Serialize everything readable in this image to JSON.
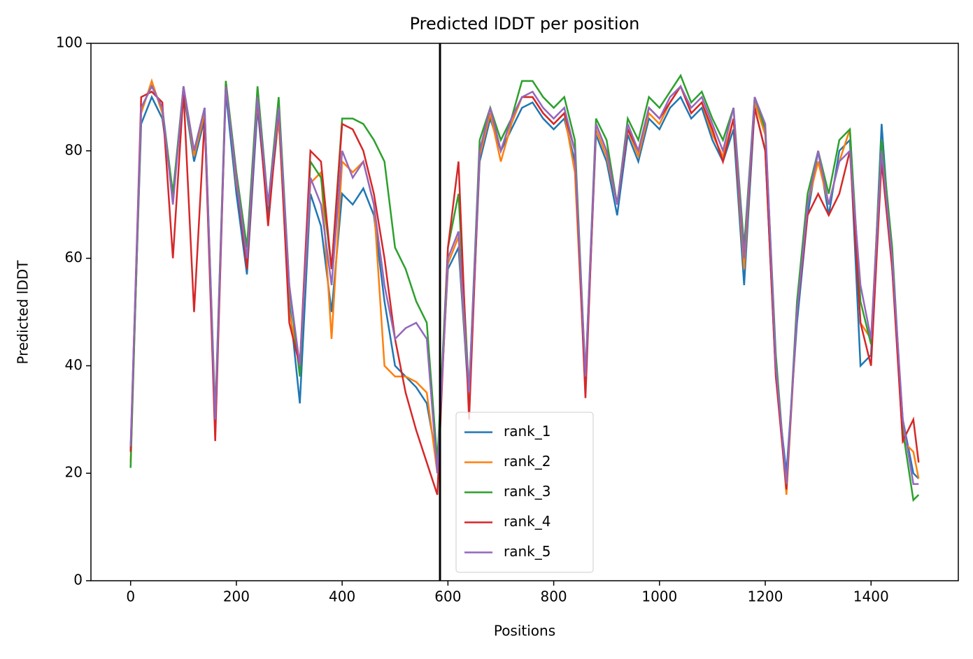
{
  "chart_data": {
    "type": "line",
    "title": "Predicted lDDT per position",
    "xlabel": "Positions",
    "ylabel": "Predicted lDDT",
    "x": [
      0,
      20,
      40,
      60,
      80,
      100,
      120,
      140,
      160,
      180,
      200,
      220,
      240,
      260,
      280,
      300,
      320,
      340,
      360,
      380,
      400,
      420,
      440,
      460,
      480,
      500,
      520,
      540,
      560,
      580,
      600,
      620,
      640,
      660,
      680,
      700,
      720,
      740,
      760,
      780,
      800,
      820,
      840,
      860,
      880,
      900,
      920,
      940,
      960,
      980,
      1000,
      1020,
      1040,
      1060,
      1080,
      1100,
      1120,
      1140,
      1160,
      1180,
      1200,
      1220,
      1240,
      1260,
      1280,
      1300,
      1320,
      1340,
      1360,
      1380,
      1400,
      1420,
      1440,
      1460,
      1480,
      1490
    ],
    "series": [
      {
        "name": "rank_1",
        "color": "#1f77b4",
        "values": [
          24,
          85,
          90,
          86,
          72,
          91,
          78,
          86,
          29,
          91,
          72,
          57,
          88,
          68,
          86,
          52,
          33,
          72,
          66,
          50,
          72,
          70,
          73,
          68,
          52,
          40,
          38,
          36,
          33,
          22,
          58,
          62,
          33,
          78,
          86,
          80,
          84,
          88,
          89,
          86,
          84,
          86,
          78,
          37,
          83,
          78,
          68,
          83,
          78,
          86,
          84,
          88,
          90,
          86,
          88,
          82,
          78,
          84,
          55,
          88,
          80,
          38,
          20,
          48,
          68,
          80,
          68,
          80,
          82,
          40,
          42,
          85,
          58,
          30,
          20,
          19
        ]
      },
      {
        "name": "rank_2",
        "color": "#ff7f0e",
        "values": [
          22,
          87,
          93,
          87,
          71,
          92,
          79,
          87,
          30,
          93,
          74,
          62,
          89,
          70,
          86,
          50,
          40,
          74,
          76,
          45,
          78,
          76,
          78,
          70,
          40,
          38,
          38,
          37,
          35,
          20,
          59,
          64,
          34,
          79,
          87,
          78,
          85,
          90,
          90,
          87,
          85,
          87,
          76,
          36,
          84,
          79,
          70,
          84,
          79,
          87,
          85,
          89,
          92,
          87,
          89,
          83,
          79,
          86,
          58,
          89,
          83,
          40,
          16,
          50,
          70,
          78,
          70,
          78,
          84,
          48,
          45,
          82,
          60,
          26,
          24,
          19
        ]
      },
      {
        "name": "rank_3",
        "color": "#2ca02c",
        "values": [
          21,
          88,
          92,
          88,
          72,
          92,
          80,
          88,
          31,
          93,
          76,
          62,
          92,
          70,
          90,
          55,
          38,
          78,
          75,
          58,
          86,
          86,
          85,
          82,
          78,
          62,
          58,
          52,
          48,
          22,
          62,
          72,
          35,
          82,
          88,
          82,
          86,
          93,
          93,
          90,
          88,
          90,
          82,
          38,
          86,
          82,
          70,
          86,
          82,
          90,
          88,
          91,
          94,
          89,
          91,
          86,
          82,
          88,
          62,
          90,
          84,
          42,
          17,
          52,
          72,
          80,
          72,
          82,
          84,
          52,
          44,
          82,
          62,
          28,
          15,
          16
        ]
      },
      {
        "name": "rank_4",
        "color": "#d62728",
        "values": [
          24,
          90,
          91,
          89,
          60,
          91,
          50,
          86,
          26,
          92,
          75,
          58,
          90,
          66,
          88,
          48,
          40,
          80,
          78,
          58,
          85,
          84,
          80,
          72,
          60,
          45,
          35,
          28,
          22,
          16,
          62,
          78,
          30,
          80,
          88,
          80,
          86,
          90,
          90,
          87,
          85,
          87,
          80,
          34,
          85,
          80,
          70,
          84,
          80,
          88,
          86,
          89,
          92,
          87,
          89,
          84,
          78,
          86,
          60,
          88,
          80,
          38,
          17,
          50,
          68,
          72,
          68,
          72,
          80,
          48,
          40,
          78,
          58,
          26,
          30,
          22
        ]
      },
      {
        "name": "rank_5",
        "color": "#9467bd",
        "values": [
          25,
          88,
          92,
          88,
          70,
          92,
          80,
          88,
          30,
          92,
          75,
          60,
          90,
          70,
          88,
          55,
          40,
          75,
          70,
          55,
          80,
          75,
          78,
          70,
          55,
          45,
          47,
          48,
          45,
          20,
          60,
          65,
          35,
          80,
          88,
          80,
          86,
          90,
          91,
          88,
          86,
          88,
          80,
          38,
          85,
          80,
          70,
          85,
          80,
          88,
          86,
          90,
          92,
          88,
          90,
          85,
          80,
          88,
          60,
          90,
          85,
          40,
          18,
          50,
          70,
          80,
          70,
          78,
          80,
          55,
          45,
          80,
          60,
          30,
          18,
          18
        ]
      }
    ],
    "vline": 585,
    "xlim": [
      -75,
      1565
    ],
    "ylim": [
      0,
      100
    ],
    "xticks": [
      0,
      200,
      400,
      600,
      800,
      1000,
      1200,
      1400
    ],
    "yticks": [
      0,
      20,
      40,
      60,
      80,
      100
    ],
    "legend": "lower center"
  }
}
